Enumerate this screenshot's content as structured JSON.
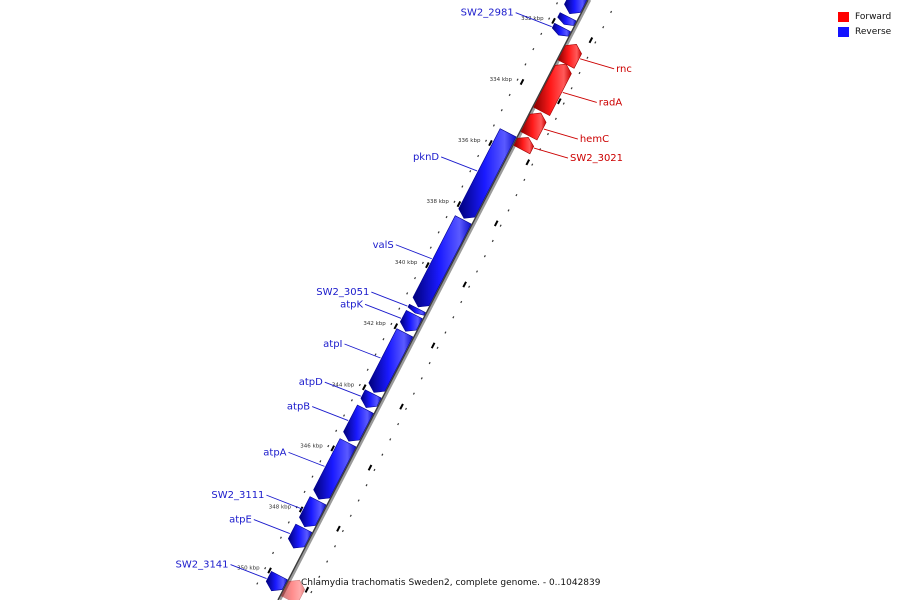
{
  "legend": {
    "forward_label": "Forward",
    "reverse_label": "Reverse",
    "forward_color": "#ff0000",
    "reverse_color": "#1414ff"
  },
  "caption": "Chlamydia trachomatis Sweden2, complete genome. - 0..1042839",
  "map": {
    "range_kbp": [
      331,
      350.5
    ],
    "ticks_kbp": [
      332,
      334,
      336,
      338,
      340,
      342,
      344,
      346,
      348,
      350
    ],
    "tick_unit": "kbp",
    "minor_tick_step_kbp": 0.5
  },
  "genes": [
    {
      "name": "",
      "strand": "reverse",
      "start": 331.0,
      "end": 331.6
    },
    {
      "name": "",
      "strand": "reverse",
      "start": 331.7,
      "end": 331.95
    },
    {
      "name": "SW2_2981",
      "strand": "reverse",
      "start": 332.05,
      "end": 332.3
    },
    {
      "name": "rnc",
      "strand": "forward",
      "start": 332.3,
      "end": 332.95
    },
    {
      "name": "radA",
      "strand": "forward",
      "start": 332.95,
      "end": 334.5
    },
    {
      "name": "hemC",
      "strand": "forward",
      "start": 334.55,
      "end": 335.3
    },
    {
      "name": "SW2_3021",
      "strand": "forward",
      "start": 335.35,
      "end": 335.75
    },
    {
      "name": "pknD",
      "strand": "reverse",
      "start": 335.5,
      "end": 338.3
    },
    {
      "name": "valS",
      "strand": "reverse",
      "start": 338.35,
      "end": 341.2
    },
    {
      "name": "SW2_3051",
      "strand": "reverse",
      "start": 341.25,
      "end": 341.4
    },
    {
      "name": "atpK",
      "strand": "reverse",
      "start": 341.45,
      "end": 342.0
    },
    {
      "name": "atpI",
      "strand": "reverse",
      "start": 342.05,
      "end": 344.0
    },
    {
      "name": "atpD",
      "strand": "reverse",
      "start": 344.05,
      "end": 344.5
    },
    {
      "name": "atpB",
      "strand": "reverse",
      "start": 344.55,
      "end": 345.6
    },
    {
      "name": "atpA",
      "strand": "reverse",
      "start": 345.65,
      "end": 347.5
    },
    {
      "name": "SW2_3111",
      "strand": "reverse",
      "start": 347.55,
      "end": 348.4
    },
    {
      "name": "atpE",
      "strand": "reverse",
      "start": 348.45,
      "end": 349.1
    },
    {
      "name": "SW2_3141",
      "strand": "reverse",
      "start": 350.0,
      "end": 350.5
    },
    {
      "name": "",
      "strand": "forward",
      "start": 349.85,
      "end": 350.5
    }
  ]
}
